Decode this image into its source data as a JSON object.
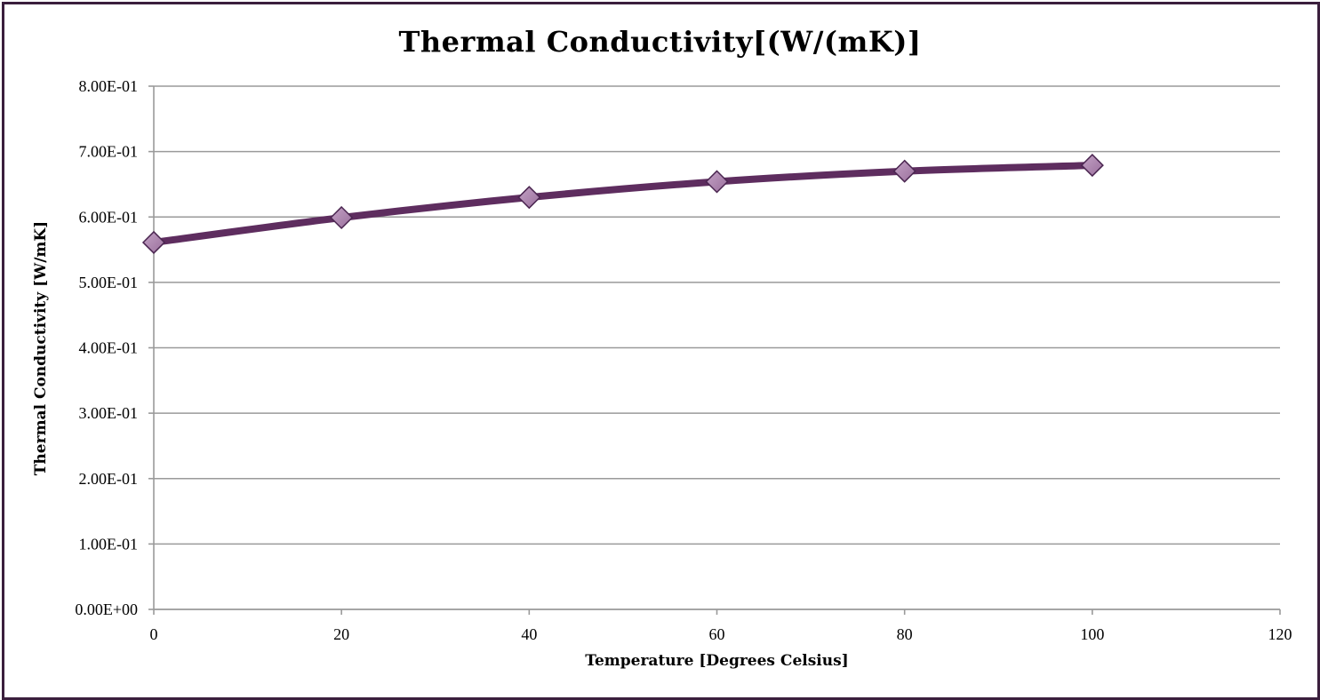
{
  "chart_data": {
    "type": "line",
    "title": "Thermal Conductivity[(W/(mK)]",
    "xlabel": "Temperature [Degrees Celsius]",
    "ylabel": "Thermal Conductivity [W/mK]",
    "x": [
      0,
      20,
      40,
      60,
      80,
      100
    ],
    "series": [
      {
        "values": [
          0.561,
          0.599,
          0.63,
          0.654,
          0.67,
          0.679
        ],
        "color": "#5e2d5f",
        "marker": "diamond",
        "smooth": true
      }
    ],
    "xlim": [
      0,
      120
    ],
    "ylim": [
      0,
      0.8
    ],
    "x_ticks": [
      0,
      20,
      40,
      60,
      80,
      100,
      120
    ],
    "x_tick_labels": [
      "0",
      "20",
      "40",
      "60",
      "80",
      "100",
      "120"
    ],
    "y_ticks": [
      0,
      0.1,
      0.2,
      0.3,
      0.4,
      0.5,
      0.6,
      0.7,
      0.8
    ],
    "y_tick_labels": [
      "0.00E+00",
      "1.00E-01",
      "2.00E-01",
      "3.00E-01",
      "4.00E-01",
      "5.00E-01",
      "6.00E-01",
      "7.00E-01",
      "8.00E-01"
    ],
    "grid": "horizontal",
    "legend": "none",
    "colors": {
      "line": "#5e2d5f",
      "marker_fill": "#9a6f9c",
      "marker_edge": "#4a2550",
      "grid": "#9a9a9a",
      "frame": "#3b1f3d"
    }
  }
}
